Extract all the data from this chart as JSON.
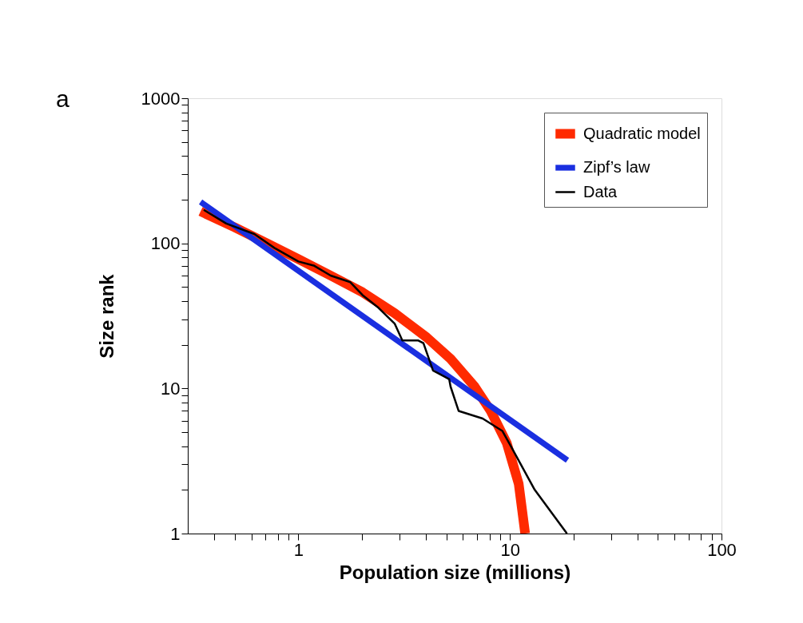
{
  "chart_data": {
    "type": "line",
    "xlabel": "Population size (millions)",
    "ylabel": "Size  rank",
    "annotations": [
      "a"
    ],
    "log": "xy",
    "xlim": [
      0.3,
      100
    ],
    "ylim": [
      1,
      1000
    ],
    "xticks": [
      {
        "value": 0.4,
        "label": null
      },
      {
        "value": 0.5,
        "label": null
      },
      {
        "value": 0.6,
        "label": null
      },
      {
        "value": 0.7,
        "label": null
      },
      {
        "value": 0.8,
        "label": null
      },
      {
        "value": 0.9,
        "label": null
      },
      1,
      {
        "value": 2,
        "label": null
      },
      {
        "value": 3,
        "label": null
      },
      {
        "value": 4,
        "label": null
      },
      {
        "value": 5,
        "label": null
      },
      {
        "value": 6,
        "label": null
      },
      {
        "value": 7,
        "label": null
      },
      {
        "value": 8,
        "label": null
      },
      {
        "value": 9,
        "label": null
      },
      10,
      {
        "value": 20,
        "label": null
      },
      {
        "value": 30,
        "label": null
      },
      {
        "value": 40,
        "label": null
      },
      {
        "value": 50,
        "label": null
      },
      {
        "value": 60,
        "label": null
      },
      {
        "value": 70,
        "label": null
      },
      {
        "value": 80,
        "label": null
      },
      {
        "value": 90,
        "label": null
      },
      100
    ],
    "yticks": [
      1,
      {
        "value": 2,
        "label": null
      },
      {
        "value": 3,
        "label": null
      },
      {
        "value": 4,
        "label": null
      },
      {
        "value": 5,
        "label": null
      },
      {
        "value": 6,
        "label": null
      },
      {
        "value": 7,
        "label": null
      },
      {
        "value": 8,
        "label": null
      },
      {
        "value": 9,
        "label": null
      },
      10,
      {
        "value": 20,
        "label": null
      },
      {
        "value": 30,
        "label": null
      },
      {
        "value": 40,
        "label": null
      },
      {
        "value": 50,
        "label": null
      },
      {
        "value": 60,
        "label": null
      },
      {
        "value": 70,
        "label": null
      },
      {
        "value": 80,
        "label": null
      },
      {
        "value": 90,
        "label": null
      },
      100,
      {
        "value": 200,
        "label": null
      },
      {
        "value": 300,
        "label": null
      },
      {
        "value": 400,
        "label": null
      },
      {
        "value": 500,
        "label": null
      },
      {
        "value": 600,
        "label": null
      },
      {
        "value": 700,
        "label": null
      },
      {
        "value": 800,
        "label": null
      },
      {
        "value": 900,
        "label": null
      },
      1000
    ],
    "grid": false,
    "legend": "top right",
    "line_style": "solid",
    "series": [
      {
        "name": "Quadratic model",
        "color": "#ff2a00",
        "x": [
          0.345,
          0.5,
          0.71,
          1,
          1.42,
          2.01,
          2.85,
          4.04,
          5.24,
          6.81,
          8.11,
          9.66,
          11.0,
          11.8
        ],
        "values": [
          166,
          129,
          100,
          78,
          60,
          46,
          33,
          22.5,
          16,
          10.3,
          7.0,
          4.2,
          2.2,
          1.0
        ]
      },
      {
        "name": "Zipf’s law",
        "color": "#1a2fe0",
        "x": [
          0.345,
          18.7
        ],
        "values": [
          193,
          3.2
        ]
      },
      {
        "name": "Data",
        "color": "#000000",
        "x": [
          0.357,
          0.456,
          0.619,
          0.77,
          1.0,
          1.19,
          1.42,
          1.76,
          2.01,
          2.39,
          2.85,
          3.1,
          3.69,
          3.9,
          4.33,
          5.16,
          5.24,
          5.72,
          7.43,
          9.2,
          10.1,
          13.1,
          18.6
        ],
        "values": [
          170,
          137,
          116,
          93,
          75,
          70,
          60,
          54,
          44,
          36,
          28,
          21.4,
          21.4,
          20.5,
          13.3,
          11.6,
          10.3,
          7.0,
          6.2,
          5.1,
          4.0,
          2.0,
          1.0
        ]
      }
    ]
  }
}
